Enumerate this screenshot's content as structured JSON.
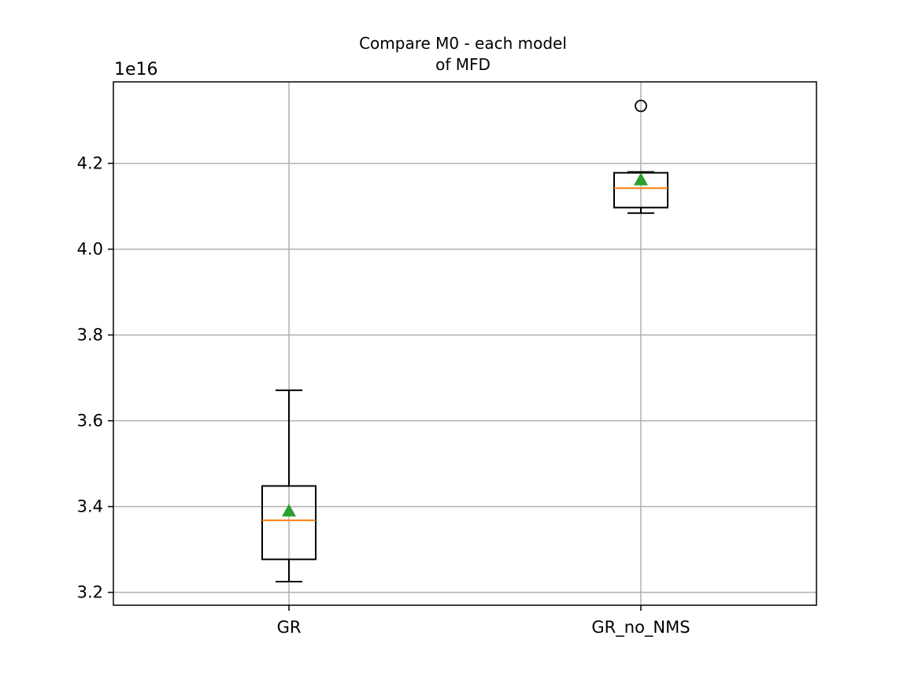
{
  "chart_data": {
    "type": "box",
    "title_lines": [
      "Compare M0 - each model",
      "of MFD"
    ],
    "offset_label": "1e16",
    "categories": [
      "GR",
      "GR_no_NMS"
    ],
    "ylim": [
      3.17,
      4.39
    ],
    "yticks": [
      3.2,
      3.4,
      3.6,
      3.8,
      4.0,
      4.2
    ],
    "ytick_labels": [
      "3.2",
      "3.4",
      "3.6",
      "3.8",
      "4.0",
      "4.2"
    ],
    "grid": true,
    "boxes": [
      {
        "name": "GR",
        "whisker_low": 3.225,
        "q1": 3.277,
        "median": 3.368,
        "q3": 3.448,
        "whisker_high": 3.671,
        "mean": 3.39,
        "outliers": []
      },
      {
        "name": "GR_no_NMS",
        "whisker_low": 4.084,
        "q1": 4.097,
        "median": 4.142,
        "q3": 4.178,
        "whisker_high": 4.18,
        "mean": 4.162,
        "outliers": [
          4.334
        ]
      }
    ],
    "colors": {
      "box": "#000000",
      "median": "#ff7f0e",
      "mean": "#2ca02c",
      "grid": "#b0b0b0"
    }
  }
}
